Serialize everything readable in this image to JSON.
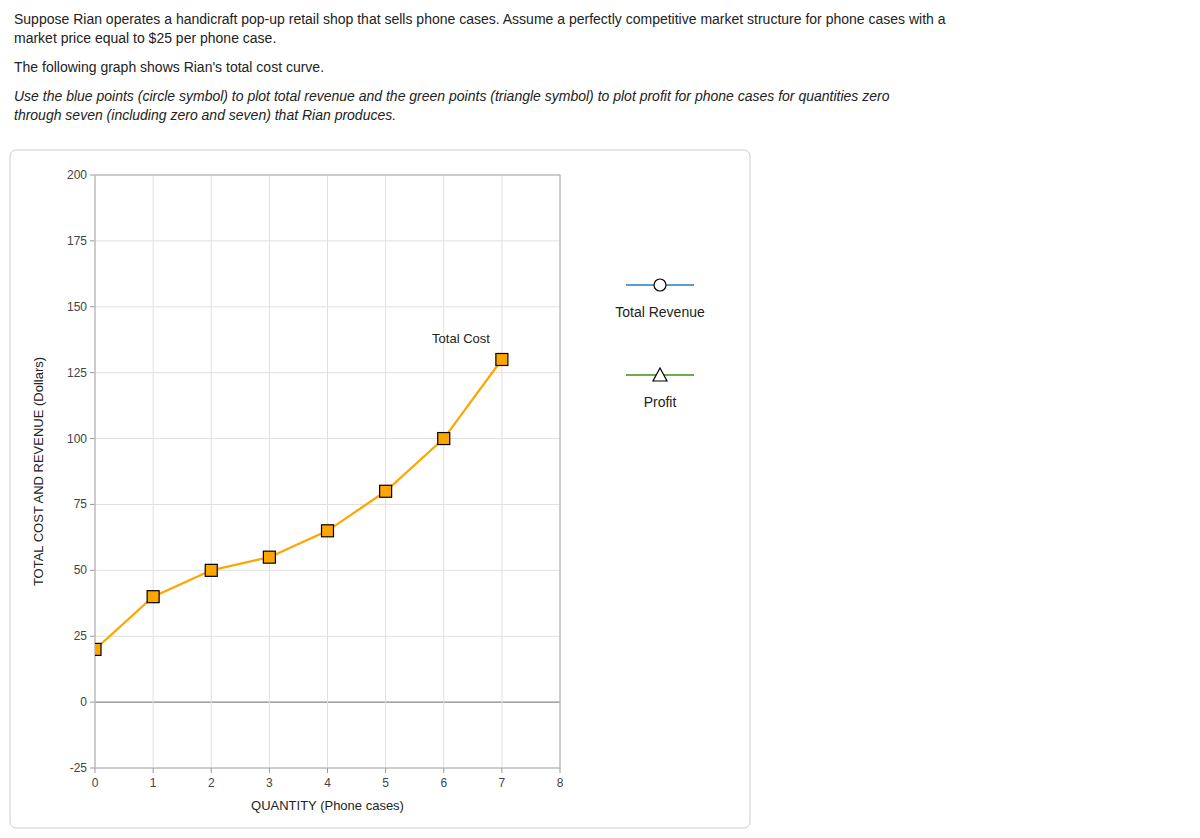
{
  "chart_data": {
    "type": "line",
    "annotations": [
      "Suppose Rian operates a handicraft pop-up retail shop that sells phone cases. Assume a perfectly competitive market structure for phone cases with a",
      "market price equal to $25 per phone case.",
      "The following graph shows Rian's total cost curve.",
      "Use the blue points (circle symbol) to plot total revenue and the green points (triangle symbol) to plot profit for phone cases for quantities zero",
      "through seven (including zero and seven) that Rian produces."
    ],
    "x_label": "QUANTITY (Phone cases)",
    "y_label": "TOTAL COST AND REVENUE (Dollars)",
    "x": [
      0,
      1,
      2,
      3,
      4,
      5,
      6,
      7
    ],
    "series": [
      {
        "name": "Total Cost",
        "color": "#FFA500",
        "marker": "square",
        "values": [
          20,
          40,
          50,
          55,
          65,
          80,
          100,
          130
        ]
      },
      {
        "name": "Total Revenue",
        "color": "#5B9BD5",
        "marker": "circle",
        "values": [
          null,
          null,
          null,
          null,
          null,
          null,
          null,
          null
        ]
      },
      {
        "name": "Profit",
        "color": "#70AD47",
        "marker": "triangle",
        "values": [
          null,
          null,
          null,
          null,
          null,
          null,
          null,
          null
        ]
      }
    ],
    "xlim": [
      0,
      8
    ],
    "ylim": [
      -25,
      200
    ],
    "xticks": [
      0,
      1,
      2,
      3,
      4,
      5,
      6,
      7,
      8
    ],
    "yticks": [
      -25,
      0,
      25,
      50,
      75,
      100,
      125,
      150,
      175,
      200
    ],
    "grid": true,
    "legend": "right"
  }
}
